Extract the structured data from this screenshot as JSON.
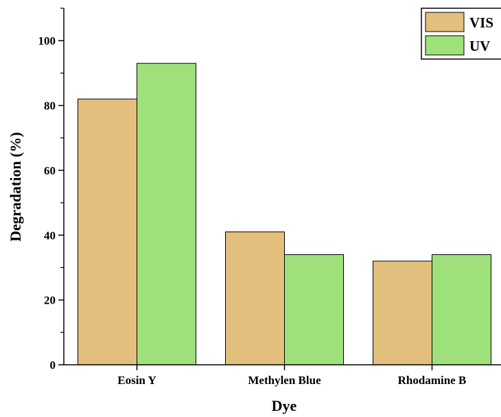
{
  "chart_data": {
    "type": "bar",
    "title": "",
    "xlabel": "Dye",
    "ylabel": "Degradation (%)",
    "categories": [
      "Eosin Y",
      "Methylen Blue",
      "Rhodamine B"
    ],
    "series": [
      {
        "name": "VIS",
        "values": [
          82,
          41,
          32
        ],
        "color": "#e2bf7d"
      },
      {
        "name": "UV",
        "values": [
          93,
          34,
          34
        ],
        "color": "#9ee17a"
      }
    ],
    "ylim": [
      0,
      110
    ],
    "yticks": [
      0,
      20,
      40,
      60,
      80,
      100
    ],
    "grid": false,
    "legend": "top-right"
  }
}
